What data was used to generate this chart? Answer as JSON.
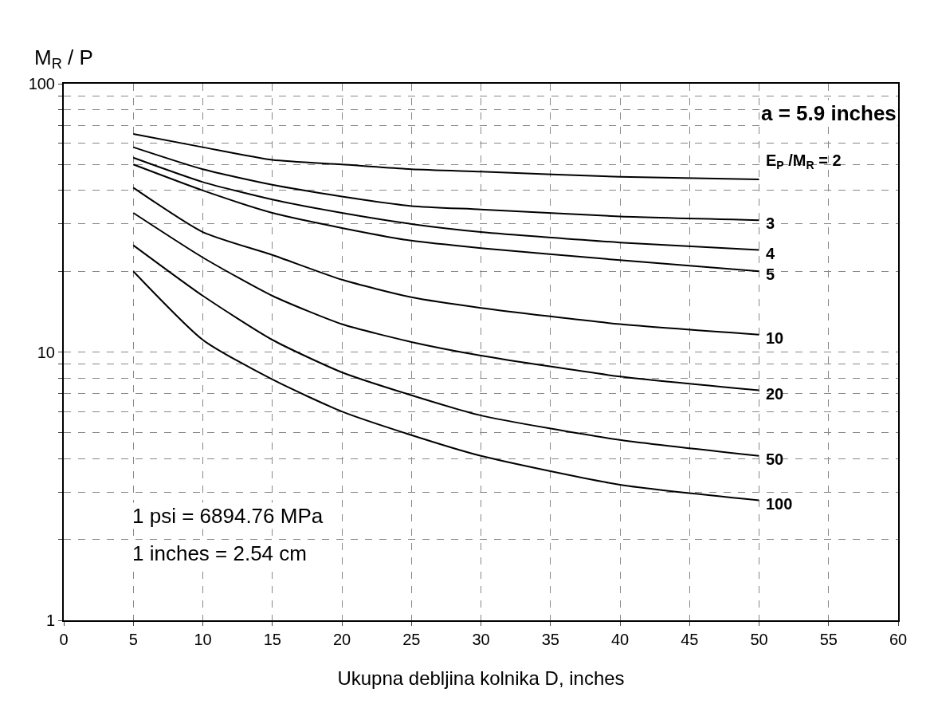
{
  "chart_data": {
    "type": "line",
    "xlabel": "Ukupna debljina kolnika D, inches",
    "ylabel": "M$_{R}$ / P",
    "x": [
      5,
      10,
      15,
      20,
      25,
      30,
      40,
      50
    ],
    "series": [
      {
        "name": "E$_{P}$ /M$_{R}$ = 2",
        "color": "#000000",
        "values": [
          65,
          58,
          52,
          50,
          48,
          47,
          45,
          44
        ]
      },
      {
        "name": "3",
        "color": "#000000",
        "values": [
          58,
          48,
          42,
          38,
          35,
          34,
          32,
          31
        ]
      },
      {
        "name": "4",
        "color": "#000000",
        "values": [
          53,
          43,
          37,
          33,
          30,
          28,
          25.6,
          24
        ]
      },
      {
        "name": "5",
        "color": "#000000",
        "values": [
          50,
          40,
          33,
          29,
          26,
          24.4,
          22,
          20
        ]
      },
      {
        "name": "10",
        "color": "#000000",
        "values": [
          41,
          28,
          23,
          18.6,
          16,
          14.6,
          12.7,
          11.6
        ]
      },
      {
        "name": "20",
        "color": "#000000",
        "values": [
          33,
          22.5,
          16.2,
          12.7,
          10.9,
          9.7,
          8.1,
          7.2
        ]
      },
      {
        "name": "50",
        "color": "#000000",
        "values": [
          25,
          16.2,
          11.1,
          8.4,
          6.9,
          5.8,
          4.7,
          4.1
        ]
      },
      {
        "name": "100",
        "color": "#000000",
        "values": [
          20,
          11.1,
          7.9,
          6.0,
          4.9,
          4.1,
          3.2,
          2.8
        ]
      }
    ],
    "log": "y",
    "xlim": [
      0,
      60
    ],
    "xticks": [
      0,
      5,
      10,
      15,
      20,
      25,
      30,
      35,
      40,
      45,
      50,
      55,
      60
    ],
    "ylim": [
      1,
      100
    ],
    "yticks": [
      1,
      {
        "value": 2,
        "label": null
      },
      {
        "value": 3,
        "label": null
      },
      {
        "value": 4,
        "label": null
      },
      {
        "value": 5,
        "label": null
      },
      {
        "value": 6,
        "label": null
      },
      {
        "value": 7,
        "label": null
      },
      {
        "value": 8,
        "label": null
      },
      {
        "value": 9,
        "label": null
      },
      10,
      {
        "value": 20,
        "label": null
      },
      {
        "value": 30,
        "label": null
      },
      {
        "value": 40,
        "label": null
      },
      {
        "value": 50,
        "label": null
      },
      {
        "value": 60,
        "label": null
      },
      {
        "value": 70,
        "label": null
      },
      {
        "value": 80,
        "label": null
      },
      {
        "value": 90,
        "label": null
      },
      100
    ],
    "grid": true,
    "line_style": "solid",
    "marker": "none",
    "legend": false,
    "annotations": [
      "a = 5.9 inches",
      "1 psi = 6894.76 MPa",
      "1 inches = 2.54 cm"
    ]
  }
}
